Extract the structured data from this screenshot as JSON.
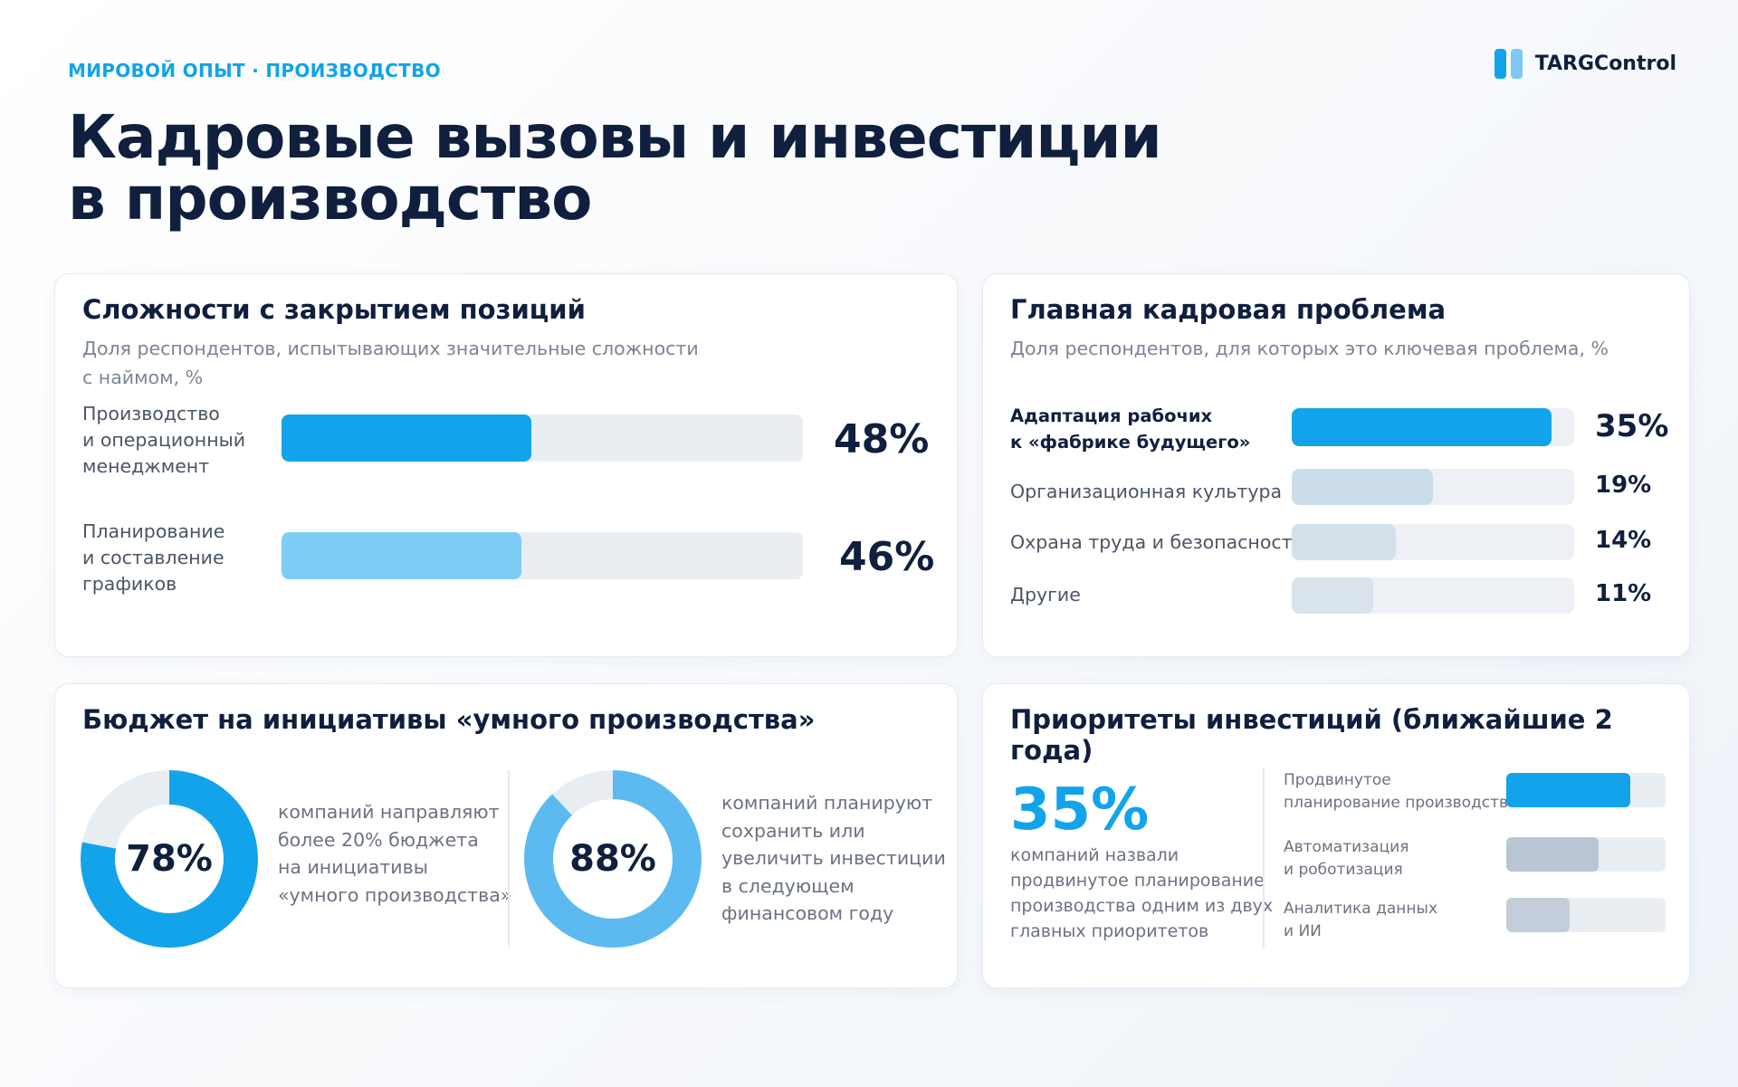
{
  "eyebrow": "МИРОВОЙ ОПЫТ · ПРОИЗВОДСТВО",
  "logo": {
    "text": "TARGControl",
    "icon": "two-bars-logo-icon"
  },
  "title_line1": "Кадровые вызовы и инвестиции",
  "title_line2": "в производство",
  "colors": {
    "accent": "#13a3ea",
    "accent_light": "#7dcdf6",
    "steel": "#b9c5d2",
    "track": "#e9eef3"
  },
  "chart_data": [
    {
      "type": "bar",
      "title": "Сложности с закрытием позиций",
      "subtitle_line1": "Доля респондентов, испытывающих значительные сложности",
      "subtitle_line2": "с наймом, %",
      "categories": [
        [
          "Производство",
          "и операционный",
          "менеджмент"
        ],
        [
          "Планирование",
          "и составление",
          "графиков"
        ]
      ],
      "values": [
        48,
        46
      ],
      "value_labels": [
        "48%",
        "46%"
      ],
      "ylim": [
        0,
        100
      ]
    },
    {
      "type": "bar",
      "title": "Главная кадровая проблема",
      "subtitle": "Доля респондентов, для которых это ключевая проблема, %",
      "categories": [
        [
          "Адаптация рабочих",
          "к «фабрике будущего»"
        ],
        [
          "Организационная культура"
        ],
        [
          "Охрана труда и безопасность"
        ],
        [
          "Другие"
        ]
      ],
      "values": [
        35,
        19,
        14,
        11
      ],
      "value_labels": [
        "35%",
        "19%",
        "14%",
        "11%"
      ],
      "ylim": [
        0,
        38
      ]
    },
    {
      "type": "pie",
      "title": "Бюджет на инициативы «умного производства»",
      "donuts": [
        {
          "value": 78,
          "label": "78%",
          "description": [
            "компаний направляют",
            "более 20% бюджета",
            "на инициативы",
            "«умного производства»"
          ]
        },
        {
          "value": 88,
          "label": "88%",
          "description": [
            "компаний планируют",
            "сохранить или",
            "увеличить инвестиции",
            "в следующем",
            "финансовом году"
          ]
        }
      ]
    },
    {
      "type": "bar",
      "title": "Приоритеты инвестиций (ближайшие 2 года)",
      "highlight_value": "35%",
      "highlight_description": [
        "компаний назвали",
        "продвинутое планирование",
        "производства одним из двух",
        "главных приоритетов"
      ],
      "categories": [
        [
          "Продвинутое",
          "планирование производства"
        ],
        [
          "Автоматизация",
          "и роботизация"
        ],
        [
          "Аналитика данных",
          "и ИИ"
        ]
      ],
      "values": [
        35,
        26,
        18
      ],
      "ylim": [
        0,
        45
      ]
    }
  ]
}
